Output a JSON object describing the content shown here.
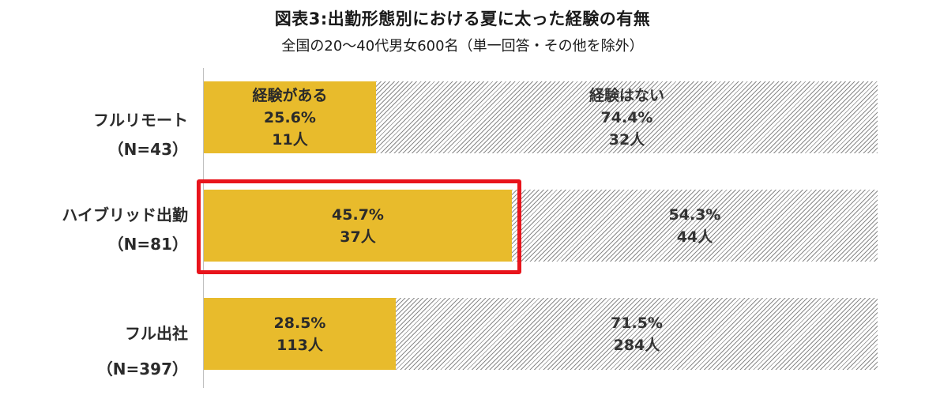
{
  "chart_data": {
    "type": "bar",
    "orientation": "horizontal",
    "stacked": true,
    "percent_stacked": true,
    "title": "図表3:出勤形態別における夏に太った経験の有無",
    "subtitle": "全国の20～40代男女600名（単一回答・その他を除外）",
    "categories": [
      {
        "name": "フルリモート",
        "n": "（N=43）"
      },
      {
        "name": "ハイブリッド出勤",
        "n": "（N=81）"
      },
      {
        "name": "フル出社",
        "n": "（N=397）"
      }
    ],
    "series": [
      {
        "name": "経験がある",
        "color": "#e8bb2c",
        "values": [
          25.6,
          45.7,
          28.5
        ],
        "pct_labels": [
          "25.6%",
          "45.7%",
          "28.5%"
        ],
        "count_labels": [
          "11人",
          "37人",
          "113人"
        ]
      },
      {
        "name": "経験はない",
        "color": "#8a8a8a",
        "values": [
          74.4,
          54.3,
          71.5
        ],
        "pct_labels": [
          "74.4%",
          "54.3%",
          "71.5%"
        ],
        "count_labels": [
          "32人",
          "44人",
          "284人"
        ]
      }
    ],
    "xlim": [
      0,
      100
    ],
    "highlight": {
      "category_index": 1,
      "series_index": 0,
      "color": "#e8141c"
    },
    "grid": false
  }
}
